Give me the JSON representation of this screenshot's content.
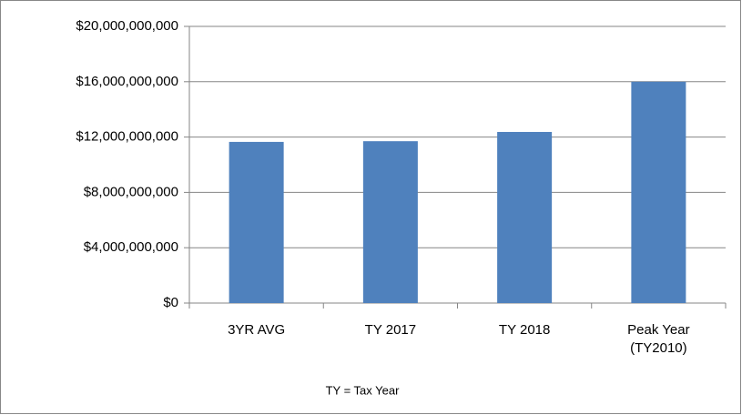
{
  "chart_data": {
    "type": "bar",
    "categories": [
      "3YR AVG",
      "TY 2017",
      "TY 2018",
      "Peak Year (TY2010)"
    ],
    "values": [
      11650000000,
      11700000000,
      12370000000,
      16000000000
    ],
    "color": "#4f81bd",
    "ylim": [
      0,
      20000000000
    ],
    "yticks": [
      {
        "value": 0,
        "label": "$0"
      },
      {
        "value": 4000000000,
        "label": "$4,000,000,000"
      },
      {
        "value": 8000000000,
        "label": "$8,000,000,000"
      },
      {
        "value": 12000000000,
        "label": "$12,000,000,000"
      },
      {
        "value": 16000000000,
        "label": "$16,000,000,000"
      },
      {
        "value": 20000000000,
        "label": "$20,000,000,000"
      }
    ],
    "grid": true,
    "annotation": "TY = Tax Year"
  }
}
